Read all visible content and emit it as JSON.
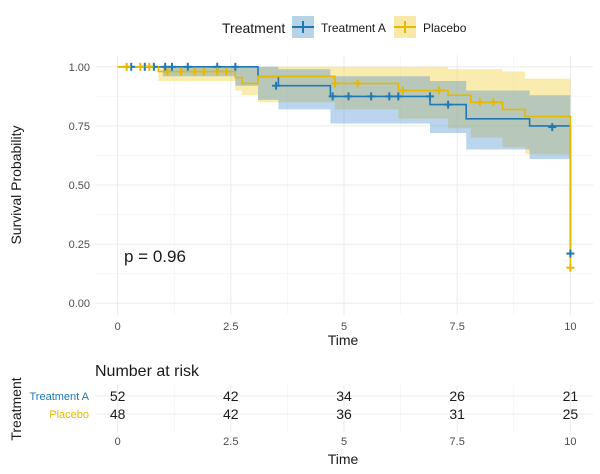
{
  "legend": {
    "title": "Treatment",
    "items": [
      {
        "label": "Treatment A",
        "color": "#1f78b4"
      },
      {
        "label": "Placebo",
        "color": "#e6b800"
      }
    ]
  },
  "annotation": {
    "pvalue": "p = 0.96"
  },
  "chart_data": [
    {
      "type": "line",
      "subtype": "kaplan-meier survival curve",
      "xlabel": "Time",
      "ylabel": "Survival Probability",
      "xlim": [
        -0.5,
        10.5
      ],
      "ylim": [
        -0.05,
        1.05
      ],
      "x_ticks": [
        0,
        2.5,
        5,
        7.5,
        10
      ],
      "x_tick_labels": [
        "0",
        "2.5",
        "5",
        "7.5",
        "10"
      ],
      "y_ticks": [
        0,
        0.25,
        0.5,
        0.75,
        1.0
      ],
      "y_tick_labels": [
        "0.00",
        "0.25",
        "0.50",
        "0.75",
        "1.00"
      ],
      "grid": true,
      "legend_position": "top",
      "series": [
        {
          "name": "Treatment A",
          "color": "#1f78b4",
          "steps": [
            [
              0,
              1.0
            ],
            [
              3.1,
              0.96
            ],
            [
              3.55,
              0.92
            ],
            [
              4.7,
              0.875
            ],
            [
              6.9,
              0.84
            ],
            [
              7.7,
              0.78
            ],
            [
              9.1,
              0.75
            ],
            [
              10,
              0.2
            ]
          ],
          "ci_lower": [
            [
              0,
              1.0
            ],
            [
              1.0,
              0.96
            ],
            [
              2.6,
              0.92
            ],
            [
              3.1,
              0.86
            ],
            [
              3.55,
              0.82
            ],
            [
              4.7,
              0.76
            ],
            [
              6.9,
              0.72
            ],
            [
              7.7,
              0.65
            ],
            [
              9.1,
              0.61
            ],
            [
              10,
              0.61
            ]
          ],
          "ci_upper": [
            [
              0,
              1.0
            ],
            [
              3.1,
              1.0
            ],
            [
              3.55,
              0.99
            ],
            [
              4.7,
              0.96
            ],
            [
              6.9,
              0.94
            ],
            [
              7.7,
              0.9
            ],
            [
              9.1,
              0.88
            ],
            [
              10,
              0.88
            ]
          ],
          "censored": [
            [
              0.3,
              1.0
            ],
            [
              0.6,
              1.0
            ],
            [
              0.8,
              1.0
            ],
            [
              1.05,
              1.0
            ],
            [
              1.2,
              1.0
            ],
            [
              1.55,
              1.0
            ],
            [
              2.2,
              1.0
            ],
            [
              2.6,
              1.0
            ],
            [
              3.5,
              0.92
            ],
            [
              4.75,
              0.875
            ],
            [
              5.1,
              0.875
            ],
            [
              5.6,
              0.875
            ],
            [
              6.0,
              0.875
            ],
            [
              6.2,
              0.875
            ],
            [
              6.9,
              0.875
            ],
            [
              7.3,
              0.84
            ],
            [
              9.6,
              0.745
            ],
            [
              10,
              0.21
            ]
          ]
        },
        {
          "name": "Placebo",
          "color": "#e6b800",
          "steps": [
            [
              0,
              1.0
            ],
            [
              0.9,
              0.98
            ],
            [
              2.6,
              0.955
            ],
            [
              2.75,
              0.93
            ],
            [
              3.1,
              0.96
            ],
            [
              4.8,
              0.93
            ],
            [
              6.2,
              0.9
            ],
            [
              7.3,
              0.88
            ],
            [
              7.8,
              0.85
            ],
            [
              8.5,
              0.82
            ],
            [
              9.0,
              0.79
            ],
            [
              10,
              0.15
            ]
          ],
          "ci_lower": [
            [
              0,
              1.0
            ],
            [
              0.9,
              0.94
            ],
            [
              2.6,
              0.9
            ],
            [
              2.75,
              0.88
            ],
            [
              3.1,
              0.85
            ],
            [
              4.8,
              0.82
            ],
            [
              6.2,
              0.78
            ],
            [
              7.3,
              0.74
            ],
            [
              7.8,
              0.7
            ],
            [
              8.5,
              0.66
            ],
            [
              9.0,
              0.63
            ],
            [
              10,
              0.63
            ]
          ],
          "ci_upper": [
            [
              0,
              1.0
            ],
            [
              0.9,
              1.0
            ],
            [
              7.0,
              1.0
            ],
            [
              7.3,
              0.99
            ],
            [
              8.5,
              0.98
            ],
            [
              9.0,
              0.95
            ],
            [
              10,
              0.95
            ]
          ],
          "censored": [
            [
              0.2,
              1.0
            ],
            [
              0.5,
              1.0
            ],
            [
              0.7,
              1.0
            ],
            [
              1.1,
              0.98
            ],
            [
              1.4,
              0.98
            ],
            [
              1.7,
              0.98
            ],
            [
              1.9,
              0.98
            ],
            [
              2.2,
              0.98
            ],
            [
              2.4,
              0.98
            ],
            [
              4.8,
              0.93
            ],
            [
              5.3,
              0.93
            ],
            [
              6.3,
              0.9
            ],
            [
              7.1,
              0.9
            ],
            [
              8.0,
              0.85
            ],
            [
              8.3,
              0.85
            ],
            [
              10,
              0.15
            ]
          ]
        }
      ]
    },
    {
      "type": "table",
      "title": "Number at risk",
      "xlabel": "Time",
      "ylabel": "Treatment",
      "x_ticks": [
        0,
        2.5,
        5,
        7.5,
        10
      ],
      "x_tick_labels": [
        "0",
        "2.5",
        "5",
        "7.5",
        "10"
      ],
      "rows": [
        {
          "name": "Treatment A",
          "color": "#1f78b4",
          "values": [
            52,
            42,
            34,
            26,
            21
          ]
        },
        {
          "name": "Placebo",
          "color": "#e6b800",
          "values": [
            48,
            42,
            36,
            31,
            25
          ]
        }
      ]
    }
  ]
}
